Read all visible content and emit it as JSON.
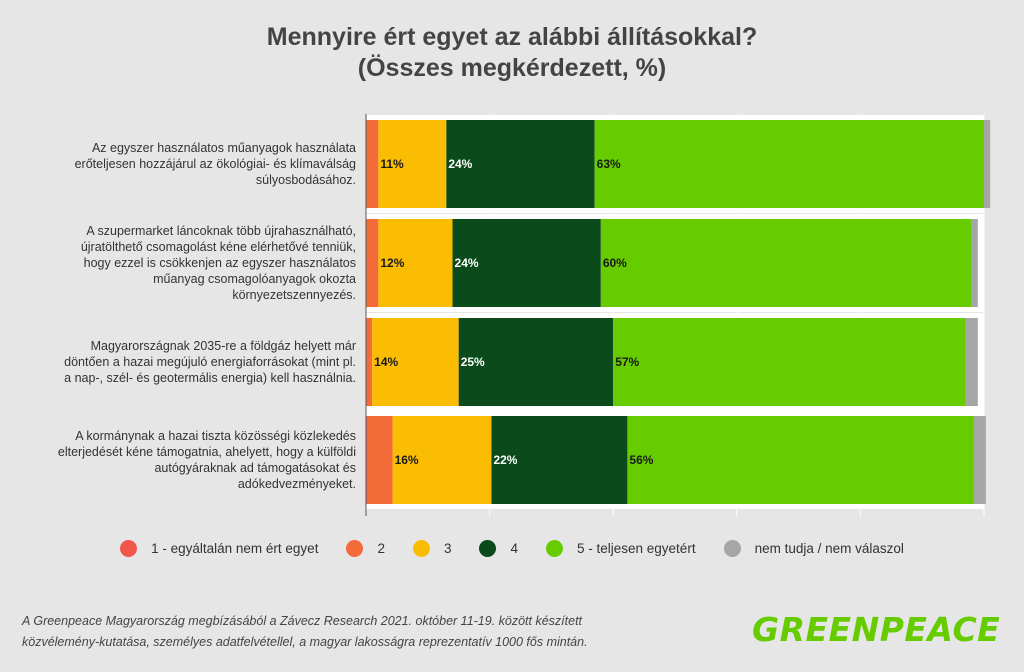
{
  "chart_data": {
    "type": "bar",
    "stacked": true,
    "orientation": "horizontal",
    "title": "Mennyire ért egyet az alábbi állításokkal?",
    "subtitle": "(Összes megkérdezett, %)",
    "categories": [
      [
        "Az egyszer használatos műanyagok használata",
        "erőteljesen hozzájárul az ökológiai- és klímaválság",
        "súlyosbodásához."
      ],
      [
        "A szupermarket láncoknak több újrahasználható,",
        "újratölthető csomagolást kéne elérhetővé tenniük,",
        "hogy ezzel is csökkenjen az egyszer használatos",
        "műanyag csomagolóanyagok okozta",
        "környezetszennyezés."
      ],
      [
        "Magyarországnak 2035-re a földgáz helyett már",
        "döntően a hazai megújuló energiaforrásokat (mint pl.",
        "a nap-, szél- és geotermális energia) kell használnia."
      ],
      [
        "A kormánynak a hazai tiszta közösségi közlekedés",
        "elterjedését kéne támogatnia, ahelyett, hogy a külföldi",
        "autógyáraknak ad támogatásokat és",
        "adókedvezményeket."
      ]
    ],
    "series": [
      {
        "name": "1 - egyáltalán nem ért egyet",
        "color": "#f0564a",
        "values": [
          0,
          0,
          0,
          0.3
        ]
      },
      {
        "name": "2",
        "color": "#f26b38",
        "values": [
          2,
          2,
          1,
          4
        ]
      },
      {
        "name": "3",
        "color": "#fbbc04",
        "values": [
          11,
          12,
          14,
          16
        ]
      },
      {
        "name": "4",
        "color": "#0b4a1a",
        "values": [
          24,
          24,
          25,
          22
        ]
      },
      {
        "name": "5 - teljesen egyetért",
        "color": "#66cc00",
        "values": [
          63,
          60,
          57,
          56
        ]
      },
      {
        "name": "nem tudja / nem válaszol",
        "color": "#a6a6a6",
        "values": [
          1,
          1,
          2,
          2
        ]
      }
    ],
    "data_labels": [
      [
        "11%",
        "24%",
        "63%"
      ],
      [
        "12%",
        "24%",
        "60%"
      ],
      [
        "14%",
        "25%",
        "57%"
      ],
      [
        "16%",
        "22%",
        "56%"
      ]
    ],
    "xlim": [
      0,
      100
    ],
    "grid": true,
    "legend": "bottom"
  },
  "footer": {
    "line1": "A Greenpeace Magyarország megbízásából a Závecz Research 2021. október 11-19. között készített",
    "line2": "közvélemény-kutatása, személyes adatfelvétellel, a magyar lakosságra reprezentatív 1000 fős mintán."
  },
  "logo": "GREENPEACE"
}
